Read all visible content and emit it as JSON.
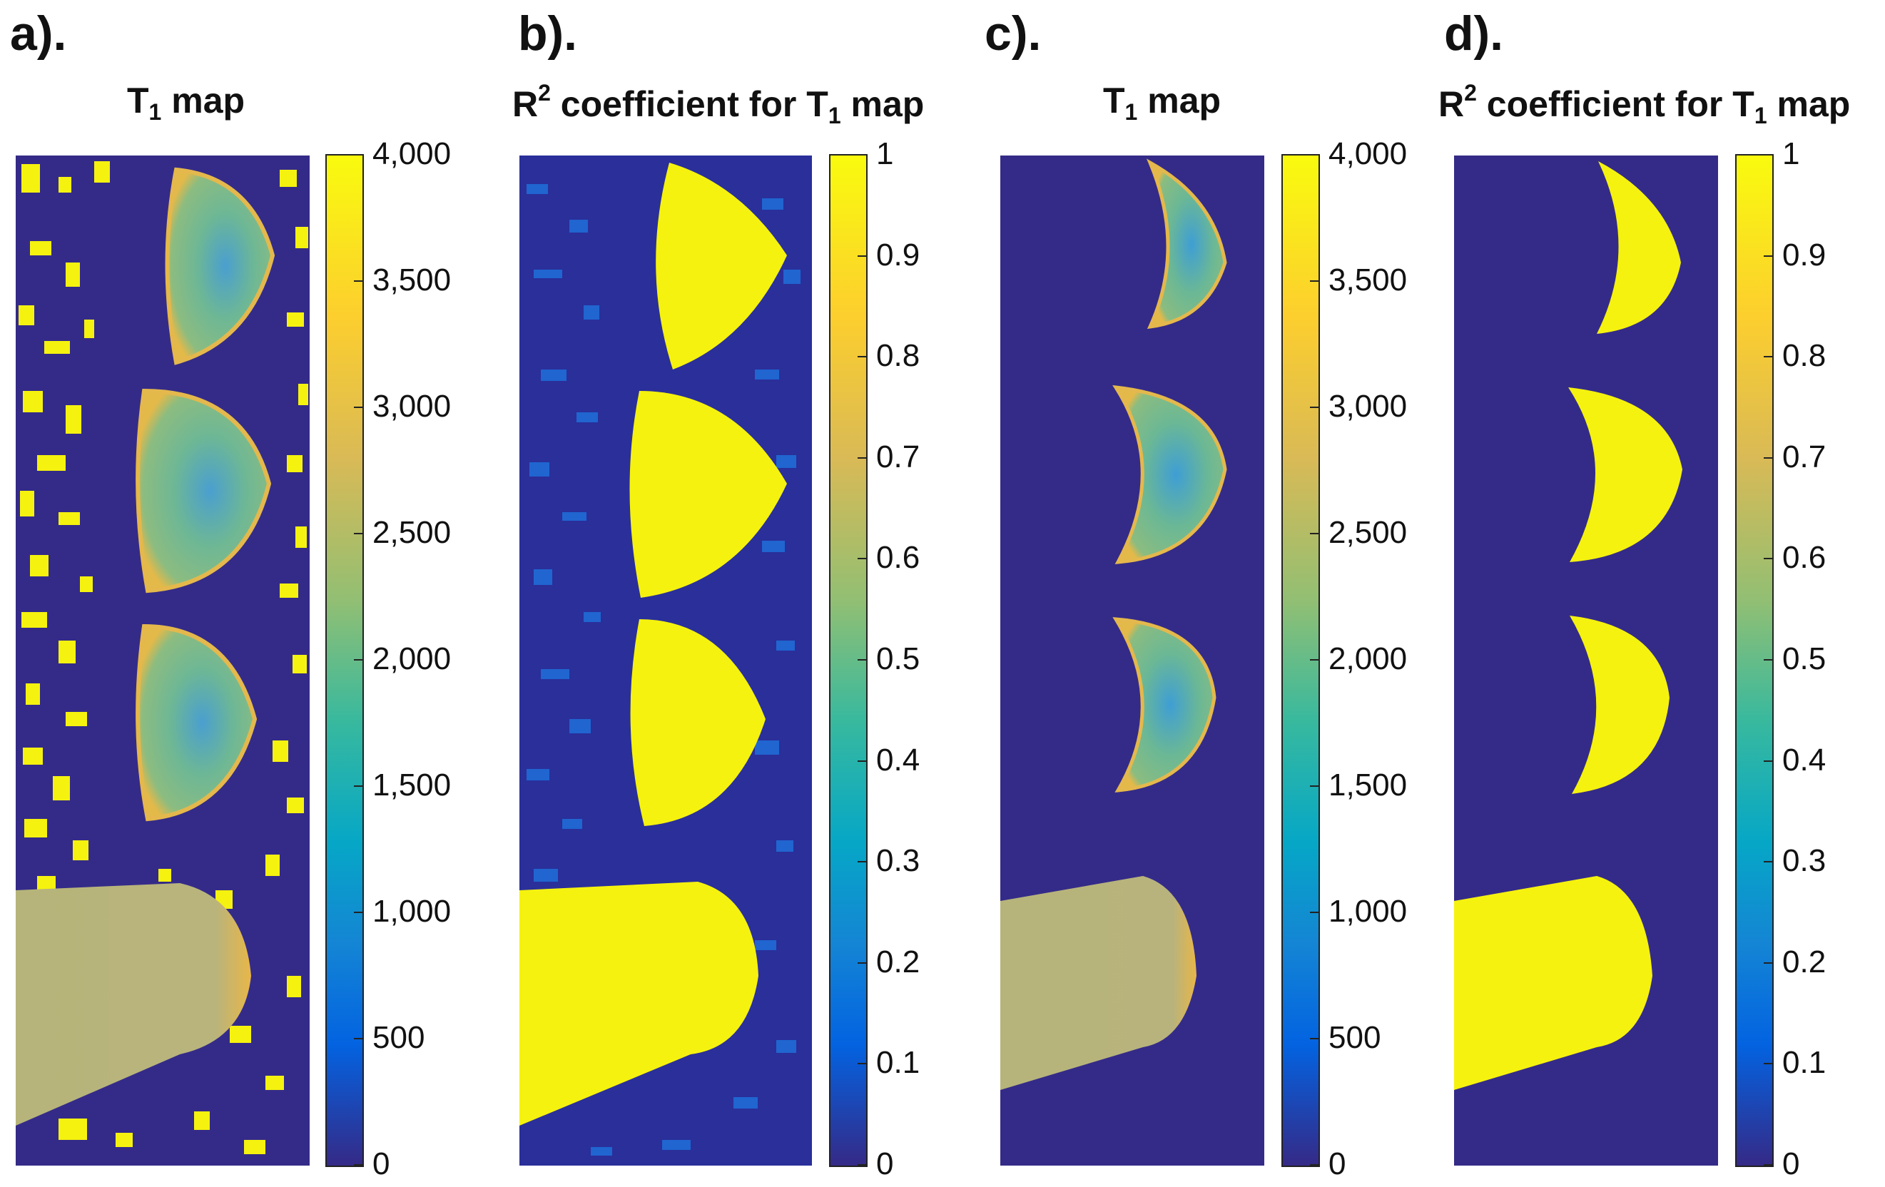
{
  "panels": [
    {
      "label": "a).",
      "title_main": "T",
      "title_sub": "1",
      "title_rest": " map",
      "colorbar_ticks": [
        "0",
        "500",
        "1,000",
        "1,500",
        "2,000",
        "2,500",
        "3,000",
        "3,500",
        "4,000"
      ],
      "colorbar_range": [
        0,
        4000
      ]
    },
    {
      "label": "b).",
      "title_main": "R",
      "title_sup": "2",
      "title_mid": " coefficient for T",
      "title_sub": "1",
      "title_rest": " map",
      "colorbar_ticks": [
        "0",
        "0.1",
        "0.2",
        "0.3",
        "0.4",
        "0.5",
        "0.6",
        "0.7",
        "0.8",
        "0.9",
        "1"
      ],
      "colorbar_range": [
        0,
        1
      ]
    },
    {
      "label": "c).",
      "title_main": "T",
      "title_sub": "1",
      "title_rest": " map",
      "colorbar_ticks": [
        "0",
        "500",
        "1,000",
        "1,500",
        "2,000",
        "2,500",
        "3,000",
        "3,500",
        "4,000"
      ],
      "colorbar_range": [
        0,
        4000
      ]
    },
    {
      "label": "d).",
      "title_main": "R",
      "title_sup": "2",
      "title_mid": " coefficient for T",
      "title_sub": "1",
      "title_rest": " map",
      "colorbar_ticks": [
        "0",
        "0.1",
        "0.2",
        "0.3",
        "0.4",
        "0.5",
        "0.6",
        "0.7",
        "0.8",
        "0.9",
        "1"
      ],
      "colorbar_range": [
        0,
        1
      ]
    }
  ],
  "colors": {
    "background": "#342b88",
    "yellow": "#f5f20f",
    "green": "#7dbb8e",
    "teal": "#6fb79e",
    "orange_rim": "#e9b84a",
    "bottom_fill": "#b9b57a",
    "blue_speckle": "#1f6bd6"
  }
}
